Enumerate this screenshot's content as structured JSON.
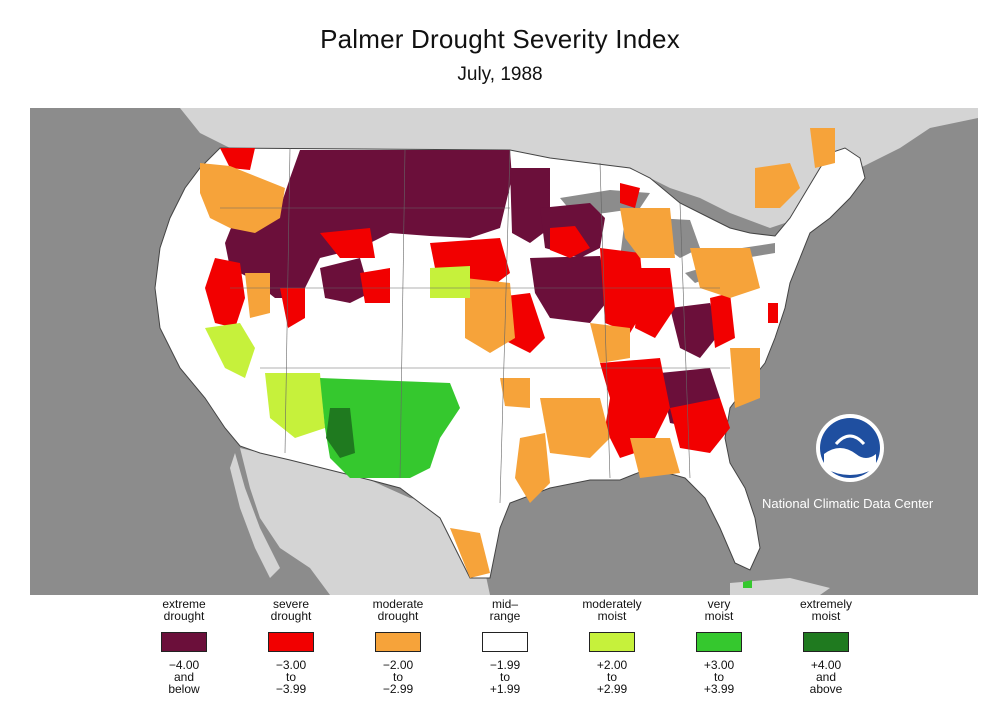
{
  "title": "Palmer Drought Severity Index",
  "subtitle": "July, 1988",
  "credit": "National Climatic Data Center",
  "colors": {
    "ocean": "#8c8c8c",
    "land_outside": "#d4d4d4",
    "us_background": "#ffffff",
    "extreme_drought": "#6b0f3a",
    "severe_drought": "#f20000",
    "moderate_drought": "#f6a33a",
    "mid_range": "#ffffff",
    "moderately_moist": "#c6f13b",
    "very_moist": "#35c82e",
    "extremely_moist": "#1f7a1f"
  },
  "legend": [
    {
      "label_line1": "extreme",
      "label_line2": "drought",
      "range_line1": "−4.00",
      "range_line2": "and",
      "range_line3": "below",
      "color": "#6b0f3a"
    },
    {
      "label_line1": "severe",
      "label_line2": "drought",
      "range_line1": "−3.00",
      "range_line2": "to",
      "range_line3": "−3.99",
      "color": "#f20000"
    },
    {
      "label_line1": "moderate",
      "label_line2": "drought",
      "range_line1": "−2.00",
      "range_line2": "to",
      "range_line3": "−2.99",
      "color": "#f6a33a"
    },
    {
      "label_line1": "mid–",
      "label_line2": "range",
      "range_line1": "−1.99",
      "range_line2": "to",
      "range_line3": "+1.99",
      "color": "#ffffff"
    },
    {
      "label_line1": "moderately",
      "label_line2": "moist",
      "range_line1": "+2.00",
      "range_line2": "to",
      "range_line3": "+2.99",
      "color": "#c6f13b"
    },
    {
      "label_line1": "very",
      "label_line2": "moist",
      "range_line1": "+3.00",
      "range_line2": "to",
      "range_line3": "+3.99",
      "color": "#35c82e"
    },
    {
      "label_line1": "extremely",
      "label_line2": "moist",
      "range_line1": "+4.00",
      "range_line2": "and",
      "range_line3": "above",
      "color": "#1f7a1f"
    }
  ]
}
